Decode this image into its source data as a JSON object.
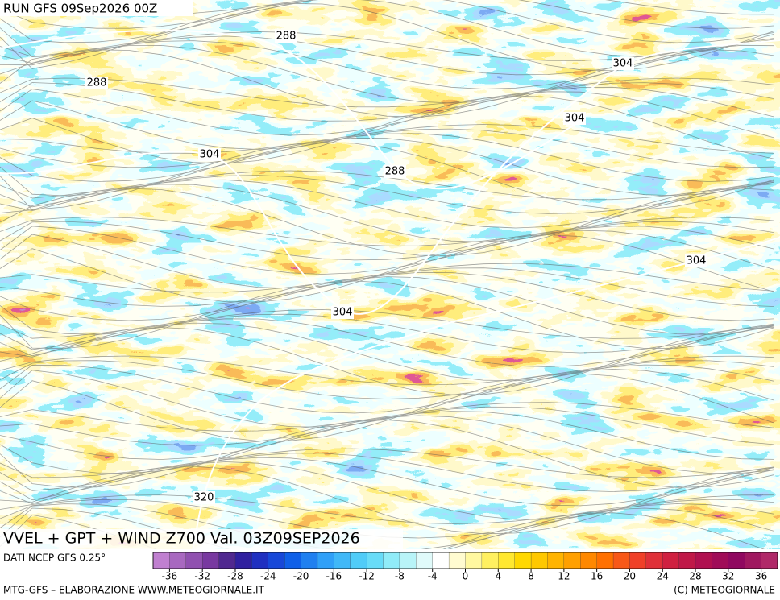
{
  "run_label": "RUN GFS 09Sep2026 00Z",
  "title": "VVEL + GPT + WIND Z700 Val. 03Z09SEP2026",
  "source": "DATI NCEP GFS 0.25°",
  "footer_left": "MTG-GFS – ELABORAZIONE WWW.METEOGIORNALE.IT",
  "footer_right": "(C) METEOGIORNALE",
  "contour_labels": [
    288,
    288,
    304,
    304,
    304,
    288,
    304,
    304,
    320
  ],
  "colorbar": {
    "lim": [
      -38,
      38
    ],
    "ticks": [
      -36,
      -32,
      -28,
      -24,
      -20,
      -16,
      -12,
      -8,
      -4,
      0,
      4,
      8,
      12,
      16,
      20,
      24,
      28,
      32,
      36
    ],
    "colors": [
      "#c080d0",
      "#a868c0",
      "#9050b0",
      "#7838a0",
      "#502890",
      "#3020a0",
      "#2030c0",
      "#1848d8",
      "#1060e8",
      "#2080f0",
      "#30a0f8",
      "#40b8f8",
      "#50ccf8",
      "#68dcf8",
      "#90ecf8",
      "#b8f4f8",
      "#e0fafa",
      "#ffffff",
      "#fffbd0",
      "#fff8a0",
      "#fff060",
      "#ffe830",
      "#ffd800",
      "#ffc800",
      "#ffb400",
      "#ffa000",
      "#ff8800",
      "#ff7000",
      "#f85818",
      "#f04028",
      "#e03038",
      "#d02040",
      "#c01848",
      "#b01050",
      "#a00c58",
      "#900860",
      "#a01860",
      "#b02868"
    ]
  }
}
